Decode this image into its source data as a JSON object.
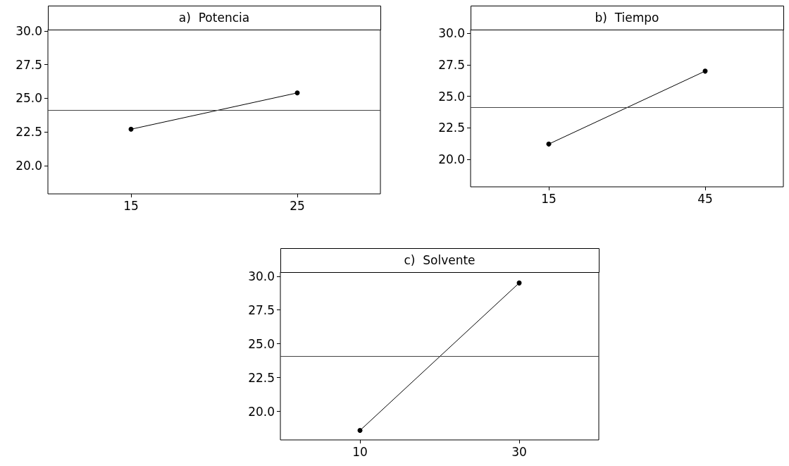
{
  "chart_data": [
    {
      "type": "line",
      "title": "a)  Potencia",
      "categories": [
        "15",
        "25"
      ],
      "values": [
        22.7,
        25.4
      ],
      "color": "#000000",
      "marker": "circle",
      "line_style": "solid",
      "grid": false,
      "ylim": [
        17.9,
        30.1
      ],
      "yticks": [
        {
          "value": 20,
          "label": "20.0"
        },
        {
          "value": 22.5,
          "label": "22.5"
        },
        {
          "value": 25,
          "label": "25.0"
        },
        {
          "value": 27.5,
          "label": "27.5"
        },
        {
          "value": 30,
          "label": "30.0"
        }
      ],
      "ref_lines": [
        {
          "axis": "y",
          "value": 24.1,
          "color": "#444444"
        }
      ]
    },
    {
      "type": "line",
      "title": "b)  Tiempo",
      "categories": [
        "15",
        "45"
      ],
      "values": [
        21.2,
        27.0
      ],
      "color": "#000000",
      "marker": "circle",
      "line_style": "solid",
      "grid": false,
      "ylim": [
        17.8,
        30.3
      ],
      "yticks": [
        {
          "value": 20,
          "label": "20.0"
        },
        {
          "value": 22.5,
          "label": "22.5"
        },
        {
          "value": 25,
          "label": "25.0"
        },
        {
          "value": 27.5,
          "label": "27.5"
        },
        {
          "value": 30,
          "label": "30.0"
        }
      ],
      "ref_lines": [
        {
          "axis": "y",
          "value": 24.1,
          "color": "#444444"
        }
      ]
    },
    {
      "type": "line",
      "title": "c)  Solvente",
      "categories": [
        "10",
        "30"
      ],
      "values": [
        18.6,
        29.5
      ],
      "color": "#000000",
      "marker": "circle",
      "line_style": "solid",
      "grid": false,
      "ylim": [
        17.9,
        30.3
      ],
      "yticks": [
        {
          "value": 20,
          "label": "20.0"
        },
        {
          "value": 22.5,
          "label": "22.5"
        },
        {
          "value": 25,
          "label": "25.0"
        },
        {
          "value": 27.5,
          "label": "27.5"
        },
        {
          "value": 30,
          "label": "30.0"
        }
      ],
      "ref_lines": [
        {
          "axis": "y",
          "value": 24.1,
          "color": "#444444"
        }
      ]
    }
  ]
}
